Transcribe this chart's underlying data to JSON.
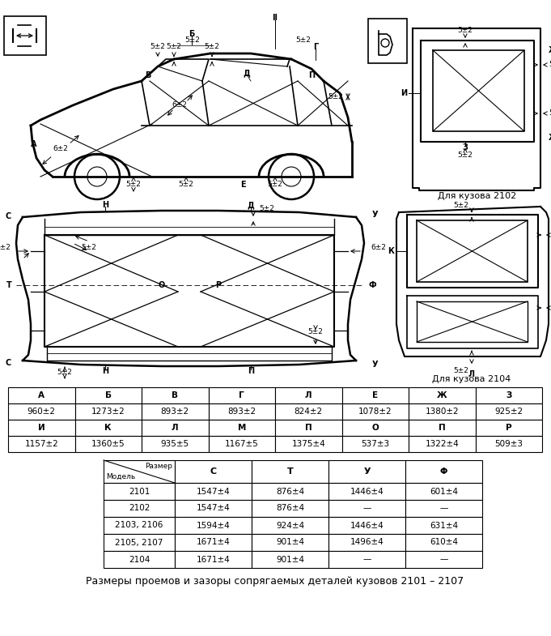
{
  "title": "Размеры проемов и зазоры сопрягаемых деталей кузовов 2101 – 2107",
  "table1_headers": [
    "А",
    "Б",
    "В",
    "Г",
    "Л",
    "Е",
    "Ж",
    "З"
  ],
  "table1_row1": [
    "960±2",
    "1273±2",
    "893±2",
    "893±2",
    "824±2",
    "1078±2",
    "1380±2",
    "925±2"
  ],
  "table1_row2_headers": [
    "И",
    "К",
    "Л",
    "М",
    "П",
    "О",
    "П",
    "Р"
  ],
  "table1_row2": [
    "1157±2",
    "1360±5",
    "935±5",
    "1167±5",
    "1375±4",
    "537±3",
    "1322±4",
    "509±3"
  ],
  "table2_col_labels": [
    "С",
    "Т",
    "У",
    "Φ"
  ],
  "table2_rows": [
    [
      "2101",
      "1547±4",
      "876±4",
      "1446±4",
      "601±4"
    ],
    [
      "2102",
      "1547±4",
      "876±4",
      "—",
      "—"
    ],
    [
      "2103, 2106",
      "1594±4",
      "924±4",
      "1446±4",
      "631±4"
    ],
    [
      "2105, 2107",
      "1671±4",
      "901±4",
      "1496±4",
      "610±4"
    ],
    [
      "2104",
      "1671±4",
      "901±4",
      "—",
      "—"
    ]
  ],
  "caption_2102": "Для кузова 2102",
  "caption_2104": "Для кузова 2104",
  "bg_color": "#ffffff",
  "text_color": "#000000",
  "line_color": "#000000"
}
